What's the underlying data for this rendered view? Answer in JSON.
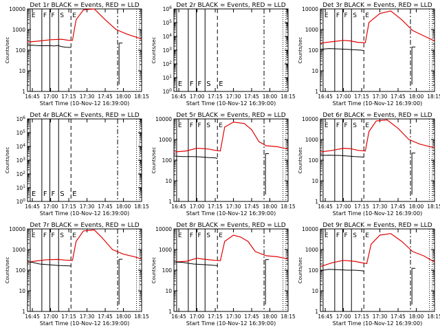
{
  "chart_data": [
    {
      "type": "line",
      "title": "Det 1r BLACK = Events, RED = LLD",
      "xlabel": "Start Time (10-Nov-12 16:39:00)",
      "ylabel": "Counts/sec",
      "yscale": "log",
      "ylim": [
        1,
        10000
      ],
      "yticks": [
        "1",
        "10",
        "100",
        "1000",
        "10000"
      ],
      "xlim": [
        16.683,
        18.25
      ],
      "xticks": [
        "16:45",
        "17:00",
        "17:15",
        "17:30",
        "17:45",
        "18:00",
        "18:15"
      ],
      "black": [
        [
          16.683,
          170
        ],
        [
          16.75,
          175
        ],
        [
          16.85,
          165
        ],
        [
          17,
          165
        ],
        [
          17.05,
          160
        ],
        [
          17.1,
          170
        ],
        [
          17.15,
          150
        ],
        [
          17.2,
          140
        ],
        [
          17.28,
          135
        ]
      ],
      "red": [
        [
          16.683,
          250
        ],
        [
          16.8,
          270
        ],
        [
          17,
          320
        ],
        [
          17.15,
          340
        ],
        [
          17.25,
          300
        ],
        [
          17.3,
          300
        ],
        [
          17.35,
          3000
        ],
        [
          17.45,
          9000
        ],
        [
          17.6,
          10000
        ],
        [
          17.75,
          3000
        ],
        [
          17.9,
          1000
        ],
        [
          18.05,
          600
        ],
        [
          18.25,
          350
        ]
      ],
      "markers": [
        "E",
        "F",
        "F",
        "S",
        "E"
      ]
    },
    {
      "type": "line",
      "title": "Det 2r BLACK = Events, RED = LLD",
      "xlabel": "Start Time (10-Nov-12 16:39:00)",
      "ylabel": "Counts/sec",
      "yscale": "log",
      "ylim": [
        1,
        1000000
      ],
      "yticks": [
        "10^0",
        "10^1",
        "10^2",
        "10^3",
        "10^4",
        "10^5",
        "10^6"
      ],
      "xlim": [
        16.683,
        18.25
      ],
      "xticks": [
        "16:45",
        "17:00",
        "17:15",
        "17:30",
        "17:45",
        "18:00",
        "18:15"
      ],
      "black": [],
      "red": [],
      "markers": [
        "E",
        "F",
        "F",
        "S",
        "E"
      ]
    },
    {
      "type": "line",
      "title": "Det 3r BLACK = Events, RED = LLD",
      "xlabel": "Start Time (10-Nov-12 16:39:00)",
      "ylabel": "Counts/sec",
      "yscale": "log",
      "ylim": [
        1,
        10000
      ],
      "yticks": [
        "1",
        "10",
        "100",
        "1000",
        "10000"
      ],
      "xlim": [
        16.683,
        18.25
      ],
      "xticks": [
        "16:45",
        "17:00",
        "17:15",
        "17:30",
        "17:45",
        "18:00",
        "18:15"
      ],
      "black": [
        [
          16.683,
          110
        ],
        [
          16.8,
          120
        ],
        [
          16.95,
          115
        ],
        [
          17.05,
          110
        ],
        [
          17.15,
          105
        ],
        [
          17.25,
          100
        ],
        [
          17.28,
          95
        ]
      ],
      "red": [
        [
          16.683,
          220
        ],
        [
          16.85,
          260
        ],
        [
          17,
          300
        ],
        [
          17.1,
          280
        ],
        [
          17.2,
          240
        ],
        [
          17.3,
          230
        ],
        [
          17.35,
          2200
        ],
        [
          17.5,
          6000
        ],
        [
          17.65,
          8000
        ],
        [
          17.8,
          3000
        ],
        [
          17.95,
          900
        ],
        [
          18.1,
          500
        ],
        [
          18.25,
          280
        ]
      ],
      "markers": [
        "E",
        "F",
        "F",
        "S",
        "E"
      ]
    },
    {
      "type": "line",
      "title": "Det 4r BLACK = Events, RED = LLD",
      "xlabel": "Start Time (10-Nov-12 16:39:00)",
      "ylabel": "Counts/sec",
      "yscale": "log",
      "ylim": [
        1,
        1000000
      ],
      "yticks": [
        "10^0",
        "10^1",
        "10^2",
        "10^3",
        "10^4",
        "10^5",
        "10^6"
      ],
      "xlim": [
        16.683,
        18.25
      ],
      "xticks": [
        "16:45",
        "17:00",
        "17:15",
        "17:30",
        "17:45",
        "18:00",
        "18:15"
      ],
      "black": [],
      "red": [],
      "markers": [
        "E",
        "F",
        "F",
        "S",
        "E"
      ]
    },
    {
      "type": "line",
      "title": "Det 5r BLACK = Events, RED = LLD",
      "xlabel": "Start Time (10-Nov-12 16:39:00)",
      "ylabel": "Counts/sec",
      "yscale": "log",
      "ylim": [
        1,
        10000
      ],
      "yticks": [
        "1",
        "10",
        "100",
        "1000",
        "10000"
      ],
      "xlim": [
        16.683,
        18.25
      ],
      "xticks": [
        "16:45",
        "17:00",
        "17:15",
        "17:30",
        "17:45",
        "18:00",
        "18:15"
      ],
      "black": [
        [
          16.683,
          160
        ],
        [
          16.8,
          150
        ],
        [
          16.95,
          150
        ],
        [
          17.05,
          145
        ],
        [
          17.15,
          135
        ],
        [
          17.25,
          130
        ],
        [
          17.28,
          120
        ]
      ],
      "red": [
        [
          16.683,
          250
        ],
        [
          16.85,
          280
        ],
        [
          17,
          380
        ],
        [
          17.15,
          350
        ],
        [
          17.25,
          300
        ],
        [
          17.32,
          280
        ],
        [
          17.38,
          4000
        ],
        [
          17.5,
          7000
        ],
        [
          17.65,
          6000
        ],
        [
          17.75,
          3000
        ],
        [
          17.85,
          800
        ],
        [
          17.95,
          500
        ],
        [
          18.1,
          450
        ],
        [
          18.25,
          350
        ]
      ],
      "markers": [
        "E",
        "F",
        "F",
        "S",
        "E"
      ]
    },
    {
      "type": "line",
      "title": "Det 6r BLACK = Events, RED = LLD",
      "xlabel": "Start Time (10-Nov-12 16:39:00)",
      "ylabel": "Counts/sec",
      "yscale": "log",
      "ylim": [
        1,
        10000
      ],
      "yticks": [
        "1",
        "10",
        "100",
        "1000",
        "10000"
      ],
      "xlim": [
        16.683,
        18.25
      ],
      "xticks": [
        "16:45",
        "17:00",
        "17:15",
        "17:30",
        "17:45",
        "18:00",
        "18:15"
      ],
      "black": [
        [
          16.683,
          170
        ],
        [
          16.8,
          175
        ],
        [
          16.95,
          170
        ],
        [
          17.05,
          160
        ],
        [
          17.15,
          150
        ],
        [
          17.25,
          145
        ],
        [
          17.28,
          140
        ]
      ],
      "red": [
        [
          16.683,
          250
        ],
        [
          16.85,
          300
        ],
        [
          17,
          380
        ],
        [
          17.1,
          360
        ],
        [
          17.2,
          300
        ],
        [
          17.3,
          280
        ],
        [
          17.35,
          2500
        ],
        [
          17.45,
          8000
        ],
        [
          17.6,
          9000
        ],
        [
          17.75,
          3500
        ],
        [
          17.9,
          1000
        ],
        [
          18.05,
          600
        ],
        [
          18.25,
          400
        ]
      ],
      "markers": [
        "E",
        "F",
        "F",
        "S",
        "E"
      ]
    },
    {
      "type": "line",
      "title": "Det 7r BLACK = Events, RED = LLD",
      "xlabel": "Start Time (10-Nov-12 16:39:00)",
      "ylabel": "Counts/sec",
      "yscale": "log",
      "ylim": [
        1,
        10000
      ],
      "yticks": [
        "1",
        "10",
        "100",
        "1000",
        "10000"
      ],
      "xlim": [
        16.683,
        18.25
      ],
      "xticks": [
        "16:45",
        "17:00",
        "17:15",
        "17:30",
        "17:45",
        "18:00",
        "18:15"
      ],
      "black": [
        [
          16.683,
          260
        ],
        [
          16.75,
          240
        ],
        [
          16.85,
          200
        ],
        [
          17,
          180
        ],
        [
          17.1,
          170
        ],
        [
          17.2,
          165
        ],
        [
          17.28,
          160
        ]
      ],
      "red": [
        [
          16.683,
          240
        ],
        [
          16.8,
          280
        ],
        [
          16.95,
          320
        ],
        [
          17.1,
          330
        ],
        [
          17.2,
          310
        ],
        [
          17.3,
          300
        ],
        [
          17.35,
          2500
        ],
        [
          17.45,
          8000
        ],
        [
          17.6,
          9000
        ],
        [
          17.7,
          4000
        ],
        [
          17.85,
          1000
        ],
        [
          18,
          600
        ],
        [
          18.15,
          450
        ],
        [
          18.25,
          350
        ]
      ],
      "markers": [
        "E",
        "F",
        "F",
        "S",
        "E"
      ]
    },
    {
      "type": "line",
      "title": "Det 8r BLACK = Events, RED = LLD",
      "xlabel": "Start Time (10-Nov-12 16:39:00)",
      "ylabel": "Counts/sec",
      "yscale": "log",
      "ylim": [
        1,
        10000
      ],
      "yticks": [
        "1",
        "10",
        "100",
        "1000",
        "10000"
      ],
      "xlim": [
        16.683,
        18.25
      ],
      "xticks": [
        "16:45",
        "17:00",
        "17:15",
        "17:30",
        "17:45",
        "18:00",
        "18:15"
      ],
      "black": [
        [
          16.683,
          250
        ],
        [
          16.8,
          240
        ],
        [
          16.95,
          200
        ],
        [
          17.05,
          190
        ],
        [
          17.15,
          180
        ],
        [
          17.25,
          170
        ],
        [
          17.28,
          165
        ]
      ],
      "red": [
        [
          16.683,
          250
        ],
        [
          16.85,
          270
        ],
        [
          17,
          380
        ],
        [
          17.1,
          340
        ],
        [
          17.25,
          300
        ],
        [
          17.32,
          290
        ],
        [
          17.38,
          2500
        ],
        [
          17.5,
          5000
        ],
        [
          17.6,
          4000
        ],
        [
          17.7,
          2500
        ],
        [
          17.8,
          800
        ],
        [
          17.95,
          500
        ],
        [
          18.1,
          450
        ],
        [
          18.25,
          350
        ]
      ],
      "markers": [
        "E",
        "F",
        "F",
        "S",
        "E"
      ]
    },
    {
      "type": "line",
      "title": "Det 9r BLACK = Events, RED = LLD",
      "xlabel": "Start Time (10-Nov-12 16:39:00)",
      "ylabel": "Counts/sec",
      "yscale": "log",
      "ylim": [
        1,
        10000
      ],
      "yticks": [
        "1",
        "10",
        "100",
        "1000",
        "10000"
      ],
      "xlim": [
        16.683,
        18.25
      ],
      "xticks": [
        "16:45",
        "17:00",
        "17:15",
        "17:30",
        "17:45",
        "18:00",
        "18:15"
      ],
      "black": [
        [
          16.683,
          95
        ],
        [
          16.8,
          110
        ],
        [
          16.95,
          105
        ],
        [
          17.05,
          100
        ],
        [
          17.15,
          100
        ],
        [
          17.25,
          95
        ],
        [
          17.28,
          90
        ]
      ],
      "red": [
        [
          16.683,
          150
        ],
        [
          16.85,
          230
        ],
        [
          17,
          300
        ],
        [
          17.15,
          270
        ],
        [
          17.25,
          230
        ],
        [
          17.32,
          210
        ],
        [
          17.38,
          1800
        ],
        [
          17.5,
          5000
        ],
        [
          17.65,
          6000
        ],
        [
          17.8,
          2500
        ],
        [
          17.95,
          800
        ],
        [
          18.1,
          500
        ],
        [
          18.25,
          250
        ]
      ],
      "markers": [
        "E",
        "F",
        "F",
        "S",
        "E"
      ]
    }
  ]
}
